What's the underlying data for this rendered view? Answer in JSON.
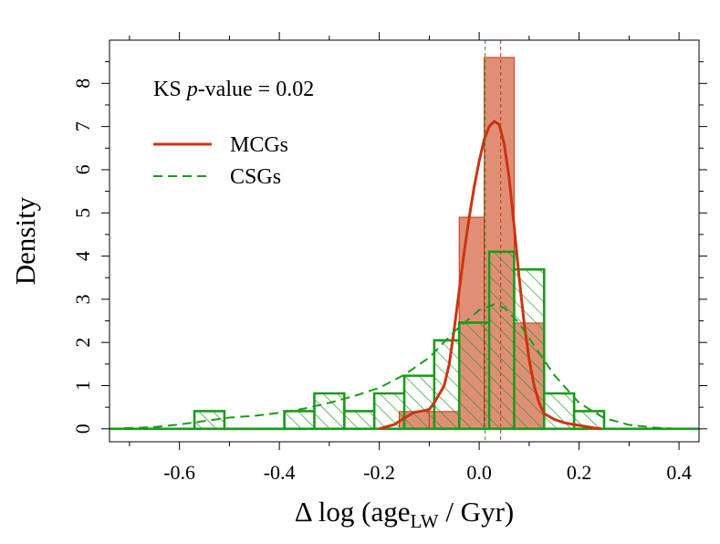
{
  "chart_data": {
    "type": "histogram",
    "xlabel_prefix": "Δ log (age",
    "xlabel_sub": "LW",
    "xlabel_suffix": " / Gyr)",
    "ylabel": "Density",
    "xlim": [
      -0.74,
      0.44
    ],
    "ylim": [
      -0.3,
      9.0
    ],
    "x_ticks": [
      -0.6,
      -0.4,
      -0.2,
      0.0,
      0.2,
      0.4
    ],
    "x_tick_labels": [
      "-0.6",
      "-0.4",
      "-0.2",
      "0.0",
      "0.2",
      "0.4"
    ],
    "y_ticks": [
      0,
      1,
      2,
      3,
      4,
      5,
      6,
      7,
      8
    ],
    "y_tick_labels": [
      "0",
      "1",
      "2",
      "3",
      "4",
      "5",
      "6",
      "7",
      "8"
    ],
    "annotation": {
      "prefix": "KS ",
      "italic": "p",
      "suffix": "-value = 0.02"
    },
    "legend_position": "top-left",
    "legend": [
      {
        "label": "MCGs",
        "color": "#cc3311",
        "style": "solid"
      },
      {
        "label": "CSGs",
        "color": "#1a9a1a",
        "style": "dashed"
      }
    ],
    "series": [
      {
        "name": "MCGs",
        "kind": "histogram",
        "fill": "#e08f77",
        "edge": "#cc3311",
        "bins": [
          {
            "x0": -0.16,
            "x1": -0.1,
            "value": 0.4
          },
          {
            "x0": -0.1,
            "x1": -0.04,
            "value": 0.4
          },
          {
            "x0": -0.04,
            "x1": 0.01,
            "value": 4.9
          },
          {
            "x0": 0.01,
            "x1": 0.07,
            "value": 8.6
          },
          {
            "x0": 0.07,
            "x1": 0.13,
            "value": 2.45
          },
          {
            "x0": 0.13,
            "x1": 0.19,
            "value": 0.0
          }
        ]
      },
      {
        "name": "CSGs",
        "kind": "histogram",
        "edge": "#1a9a1a",
        "hatch": true,
        "bins": [
          {
            "x0": -0.57,
            "x1": -0.51,
            "value": 0.41
          },
          {
            "x0": -0.51,
            "x1": -0.45,
            "value": 0.0
          },
          {
            "x0": -0.45,
            "x1": -0.39,
            "value": 0.0
          },
          {
            "x0": -0.39,
            "x1": -0.33,
            "value": 0.41
          },
          {
            "x0": -0.33,
            "x1": -0.27,
            "value": 0.82
          },
          {
            "x0": -0.27,
            "x1": -0.21,
            "value": 0.41
          },
          {
            "x0": -0.21,
            "x1": -0.15,
            "value": 0.82
          },
          {
            "x0": -0.15,
            "x1": -0.09,
            "value": 1.23
          },
          {
            "x0": -0.09,
            "x1": -0.04,
            "value": 2.05
          },
          {
            "x0": -0.04,
            "x1": 0.02,
            "value": 2.46
          },
          {
            "x0": 0.02,
            "x1": 0.07,
            "value": 4.1
          },
          {
            "x0": 0.07,
            "x1": 0.13,
            "value": 3.69
          },
          {
            "x0": 0.13,
            "x1": 0.19,
            "value": 0.82
          },
          {
            "x0": 0.19,
            "x1": 0.25,
            "value": 0.41
          }
        ]
      },
      {
        "name": "MCGs density",
        "kind": "line",
        "color": "#cc3311",
        "style": "solid",
        "x": [
          -0.2,
          -0.17,
          -0.15,
          -0.13,
          -0.11,
          -0.1,
          -0.09,
          -0.07,
          -0.06,
          -0.05,
          -0.04,
          -0.03,
          -0.02,
          -0.01,
          0.0,
          0.01,
          0.02,
          0.03,
          0.04,
          0.05,
          0.06,
          0.07,
          0.08,
          0.09,
          0.1,
          0.11,
          0.12,
          0.13,
          0.15,
          0.17,
          0.19,
          0.21,
          0.23,
          0.245
        ],
        "y": [
          0.0,
          0.1,
          0.25,
          0.38,
          0.42,
          0.45,
          0.6,
          1.0,
          1.5,
          2.3,
          3.2,
          4.1,
          4.9,
          5.6,
          6.2,
          6.7,
          7.0,
          7.12,
          7.05,
          6.6,
          5.8,
          4.7,
          3.5,
          2.45,
          1.6,
          1.0,
          0.6,
          0.35,
          0.22,
          0.14,
          0.1,
          0.06,
          0.02,
          0.0
        ]
      },
      {
        "name": "CSGs density",
        "kind": "line",
        "color": "#1a9a1a",
        "style": "dashed",
        "x": [
          -0.74,
          -0.65,
          -0.6,
          -0.55,
          -0.5,
          -0.45,
          -0.4,
          -0.35,
          -0.3,
          -0.25,
          -0.2,
          -0.15,
          -0.1,
          -0.05,
          0.0,
          0.03,
          0.05,
          0.08,
          0.1,
          0.15,
          0.2,
          0.25,
          0.3,
          0.35,
          0.4,
          0.44
        ],
        "y": [
          0.0,
          0.04,
          0.1,
          0.18,
          0.26,
          0.3,
          0.37,
          0.47,
          0.6,
          0.76,
          0.95,
          1.25,
          1.65,
          2.25,
          2.75,
          2.88,
          2.8,
          2.45,
          2.1,
          1.25,
          0.6,
          0.25,
          0.09,
          0.03,
          0.0,
          0.0
        ]
      }
    ],
    "vlines": [
      {
        "x": 0.043,
        "color": "#cc3311",
        "style": "dashed",
        "label": "MCGs median"
      },
      {
        "x": 0.012,
        "color": "#1a9a1a",
        "style": "dashed",
        "label": "CSGs median"
      }
    ]
  }
}
